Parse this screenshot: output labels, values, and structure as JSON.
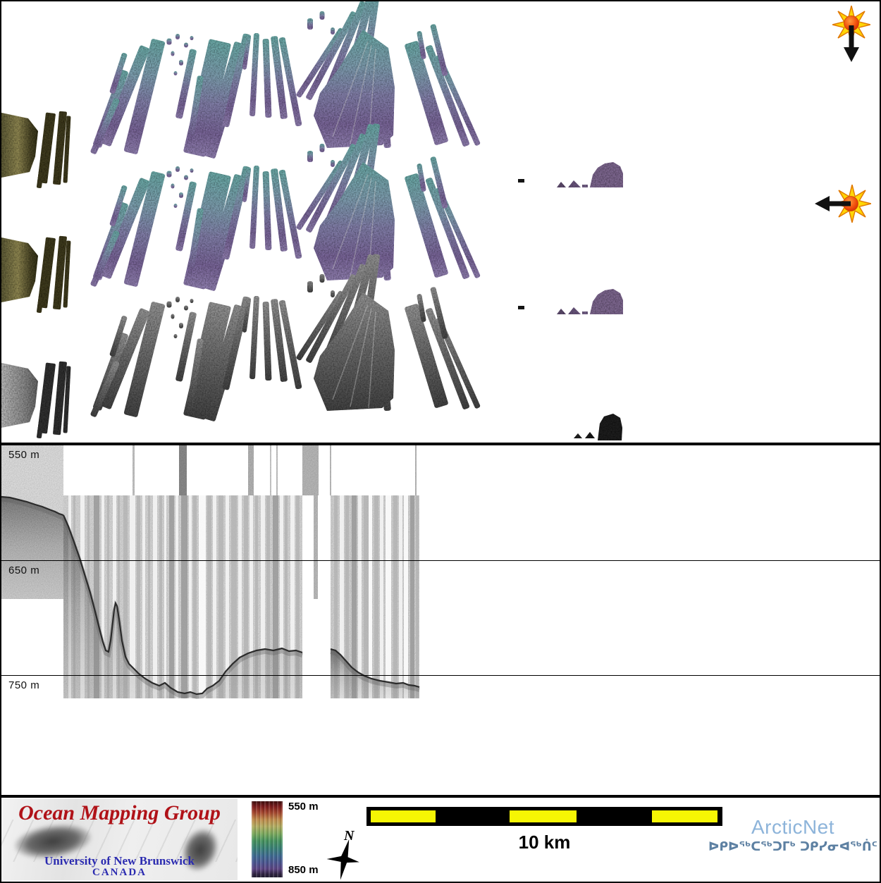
{
  "map_panel": {
    "sun_down_icon": "sun-illumination-arrow-down",
    "sun_left_icon": "sun-illumination-arrow-left"
  },
  "profile_panel": {
    "depth_labels": [
      "550 m",
      "650 m",
      "750 m"
    ]
  },
  "legend": {
    "omg_logo": {
      "title": "Ocean Mapping Group",
      "university": "University of New Brunswick",
      "country": "CANADA",
      "title_color": "#b01218",
      "text_color": "#2b2bb0"
    },
    "colorbar": {
      "top_label": "550 m",
      "bottom_label": "850 m"
    },
    "compass": {
      "north_label": "N"
    },
    "scalebar": {
      "label": "10 km",
      "segment_color": "#f6f604"
    },
    "arcticnet": {
      "wordmark": "ArcticNet",
      "inuktitut": "ᐅᑭᐅᖅᑕᖅᑐᒥᒃ ᑐᑭᓯᓂᐊᖅᑏᑦ",
      "wordmark_color": "#8db4da",
      "inuktitut_color": "#5d80a2"
    }
  }
}
